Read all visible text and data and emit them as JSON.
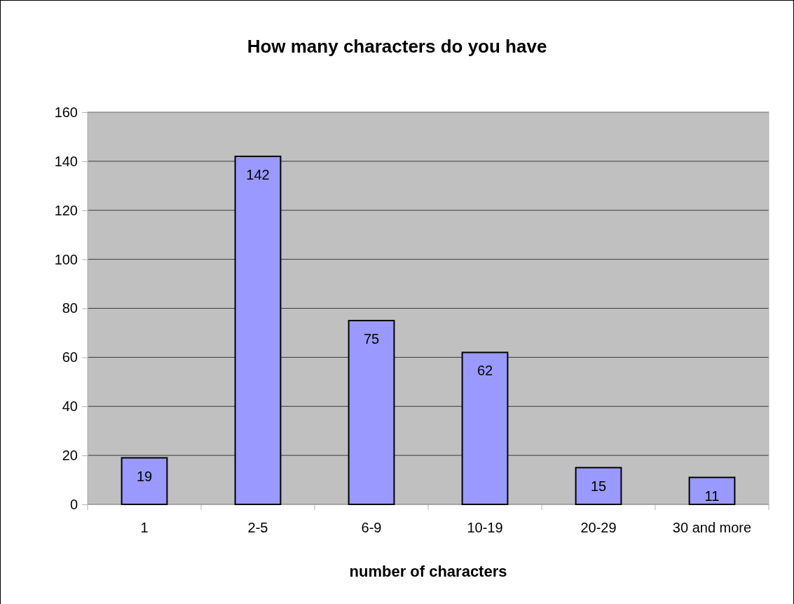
{
  "chart_data": {
    "type": "bar",
    "title": "How many characters do you have",
    "xlabel": "number of characters",
    "categories": [
      "1",
      "2-5",
      "6-9",
      "10-19",
      "20-29",
      "30 and more"
    ],
    "values": [
      19,
      142,
      75,
      62,
      15,
      11
    ],
    "color": "#9999ff",
    "ylim": [
      0,
      160
    ],
    "yticks": [
      0,
      20,
      40,
      60,
      80,
      100,
      120,
      140,
      160
    ],
    "grid": "y",
    "data_labels": true
  }
}
